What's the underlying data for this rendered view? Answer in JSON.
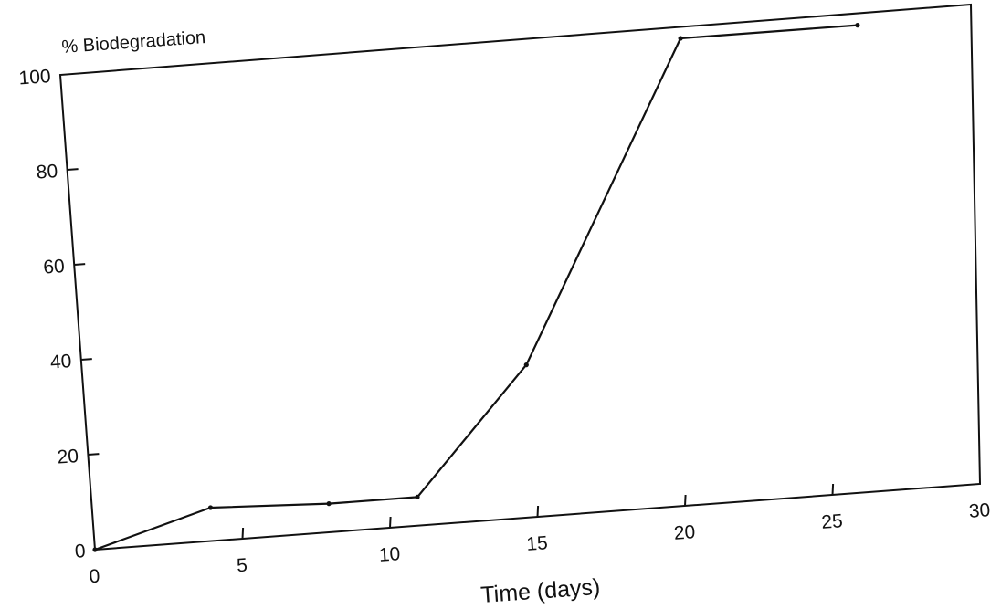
{
  "chart_data": {
    "type": "line",
    "xlabel": "Time (days)",
    "ylabel": "% Biodegradation",
    "xlim": [
      0,
      30
    ],
    "ylim": [
      0,
      100
    ],
    "grid": false,
    "x_ticks": [
      "0",
      "5",
      "10",
      "15",
      "20",
      "25",
      "30"
    ],
    "y_ticks": [
      "0",
      "20",
      "40",
      "60",
      "80",
      "100"
    ],
    "series": [
      {
        "x": [
          0,
          4,
          8,
          11,
          15,
          21,
          27
        ],
        "y": [
          0,
          7,
          6,
          6,
          32,
          98,
          98
        ]
      }
    ]
  }
}
